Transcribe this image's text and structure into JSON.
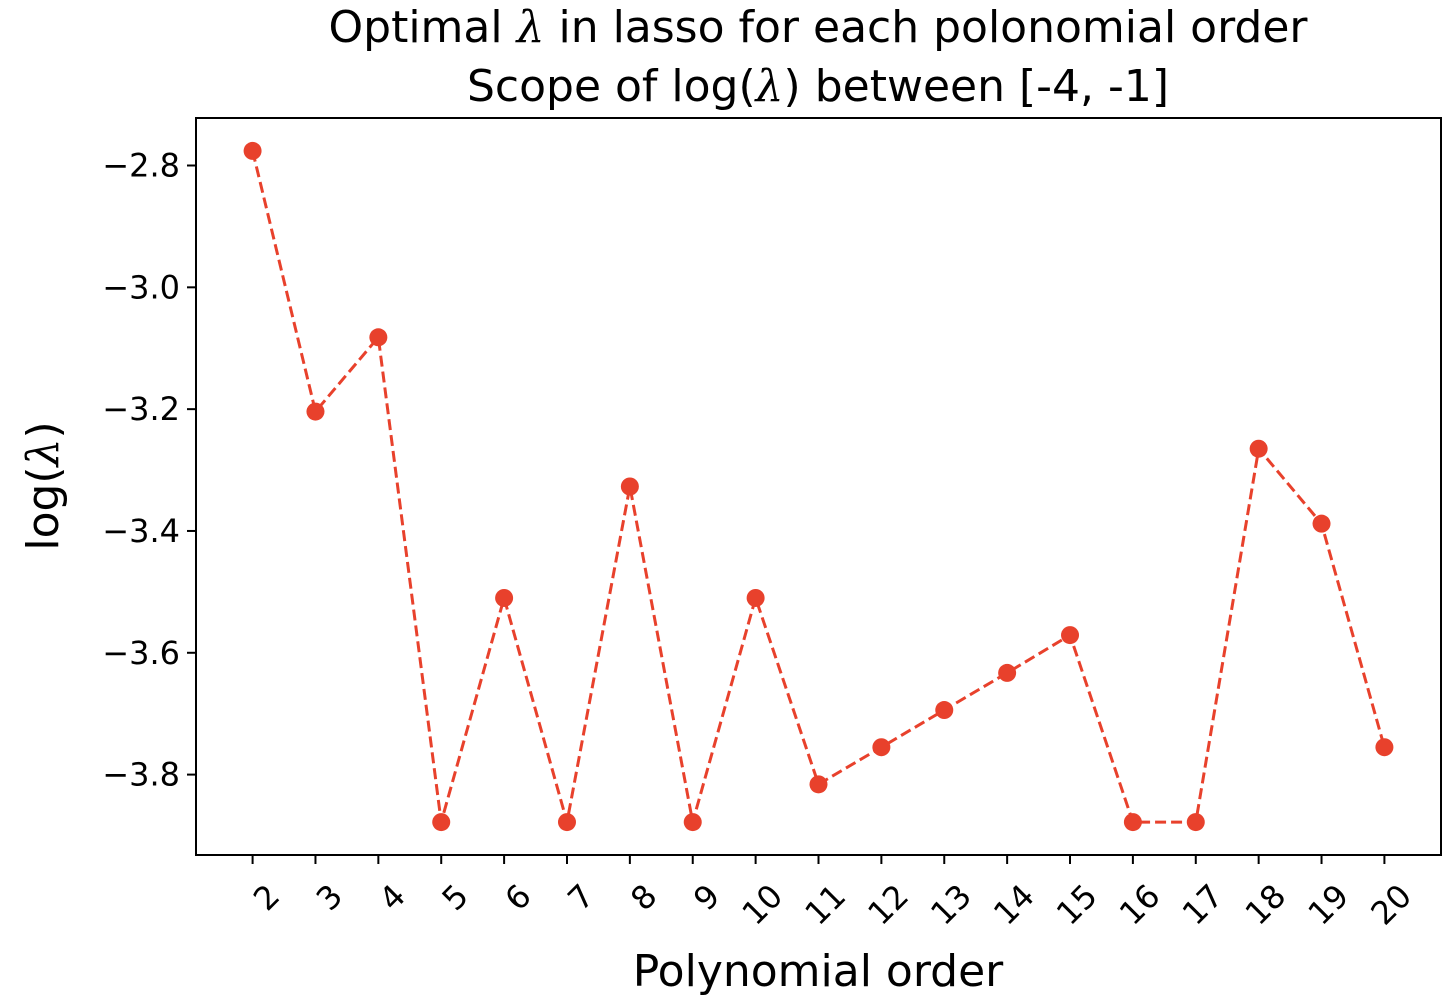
{
  "chart_data": {
    "type": "line",
    "title_line1_pre": "Optimal ",
    "title_line1_sym": "λ",
    "title_line1_post": " in lasso for each polonomial order",
    "title_line2_pre": "Scope of log(",
    "title_line2_sym": "λ",
    "title_line2_post": ") between [-4, -1]",
    "xlabel": "Polynomial order",
    "ylabel_pre": "log(",
    "ylabel_sym": "λ",
    "ylabel_post": ")",
    "x": [
      2,
      3,
      4,
      5,
      6,
      7,
      8,
      9,
      10,
      11,
      12,
      13,
      14,
      15,
      16,
      17,
      18,
      19,
      20
    ],
    "y": [
      -2.776,
      -3.204,
      -3.082,
      -3.878,
      -3.51,
      -3.878,
      -3.327,
      -3.878,
      -3.51,
      -3.816,
      -3.755,
      -3.694,
      -3.633,
      -3.571,
      -3.878,
      -3.878,
      -3.265,
      -3.388,
      -3.755
    ],
    "xticks": [
      "2",
      "3",
      "4",
      "5",
      "6",
      "7",
      "8",
      "9",
      "10",
      "11",
      "12",
      "13",
      "14",
      "15",
      "16",
      "17",
      "18",
      "19",
      "20"
    ],
    "yticks": [
      -2.8,
      -3.0,
      -3.2,
      -3.4,
      -3.6,
      -3.8
    ],
    "ytick_labels": [
      "−2.8",
      "−3.0",
      "−3.2",
      "−3.4",
      "−3.6",
      "−3.8"
    ],
    "xlim": [
      1.1,
      20.9
    ],
    "ylim": [
      -3.932,
      -2.722
    ],
    "line_style": "dashed",
    "marker": "circle",
    "color": "#e8412c",
    "grid": false,
    "legend": "none"
  }
}
